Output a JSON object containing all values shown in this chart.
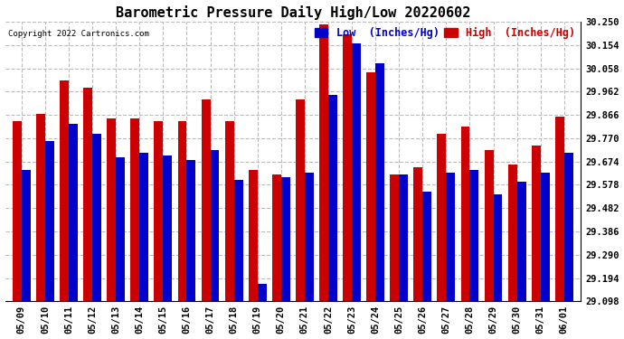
{
  "title": "Barometric Pressure Daily High/Low 20220602",
  "copyright": "Copyright 2022 Cartronics.com",
  "legend_low": "Low  (Inches/Hg)",
  "legend_high": "High  (Inches/Hg)",
  "dates": [
    "05/09",
    "05/10",
    "05/11",
    "05/12",
    "05/13",
    "05/14",
    "05/15",
    "05/16",
    "05/17",
    "05/18",
    "05/19",
    "05/20",
    "05/21",
    "05/22",
    "05/23",
    "05/24",
    "05/25",
    "05/26",
    "05/27",
    "05/28",
    "05/29",
    "05/30",
    "05/31",
    "06/01"
  ],
  "low_values": [
    29.64,
    29.76,
    29.83,
    29.79,
    29.69,
    29.71,
    29.7,
    29.68,
    29.72,
    29.6,
    29.17,
    29.61,
    29.63,
    29.95,
    30.16,
    30.08,
    29.62,
    29.55,
    29.63,
    29.64,
    29.54,
    29.59,
    29.63,
    29.71
  ],
  "high_values": [
    29.84,
    29.87,
    30.01,
    29.98,
    29.85,
    29.85,
    29.84,
    29.84,
    29.93,
    29.84,
    29.64,
    29.62,
    29.93,
    30.24,
    30.2,
    30.04,
    29.62,
    29.65,
    29.79,
    29.82,
    29.72,
    29.66,
    29.74,
    29.86
  ],
  "ylim_min": 29.098,
  "ylim_max": 30.25,
  "yticks": [
    29.098,
    29.194,
    29.29,
    29.386,
    29.482,
    29.578,
    29.674,
    29.77,
    29.866,
    29.962,
    30.058,
    30.154,
    30.25
  ],
  "bar_width": 0.38,
  "low_color": "#0000cc",
  "high_color": "#cc0000",
  "bg_color": "#ffffff",
  "grid_color": "#bbbbbb",
  "title_fontsize": 11,
  "tick_fontsize": 7.5,
  "label_fontsize": 8.5
}
